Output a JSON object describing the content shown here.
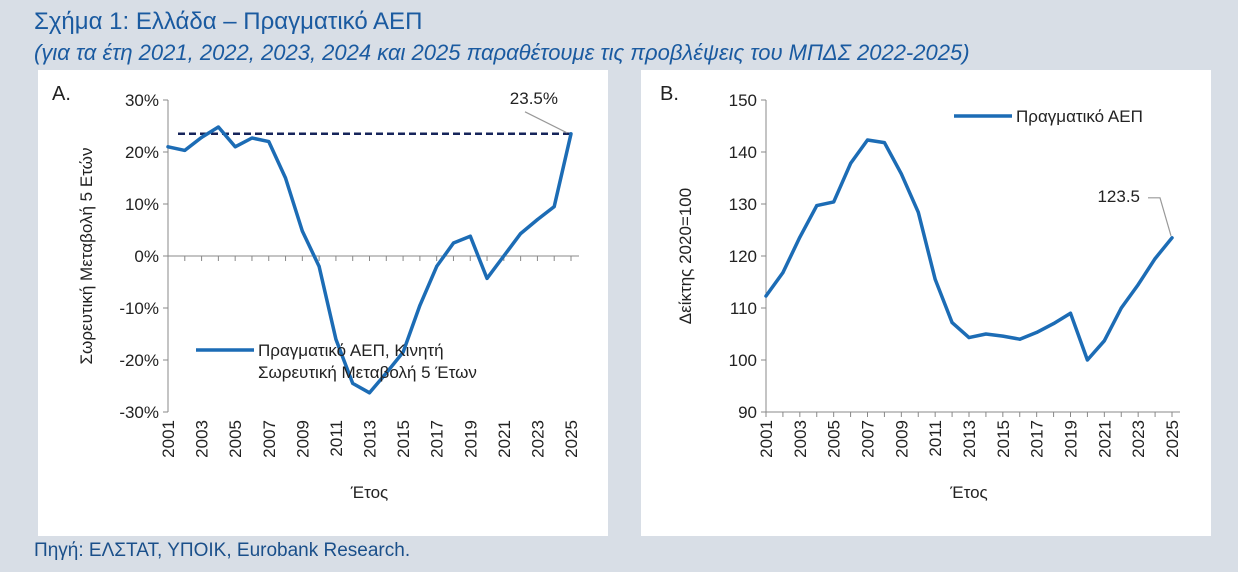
{
  "title": "Σχήμα 1: Ελλάδα – Πραγματικό ΑΕΠ",
  "subtitle": "(για τα έτη 2021, 2022, 2023, 2024 και 2025 παραθέτουμε τις προβλέψεις του ΜΠΔΣ 2022-2025)",
  "source": "Πηγή: ΕΛΣΤΑΤ, ΥΠΟΙΚ, Eurobank Research.",
  "colors": {
    "line": "#1c6cb5",
    "reference": "#16245a",
    "text": "#1a5aa0",
    "background": "#d8dee6"
  },
  "chart_data": [
    {
      "type": "line",
      "panel_label": "A.",
      "xlabel": "Έτος",
      "ylabel": "Σωρευτική Μεταβολή 5 Ετών",
      "ylim": [
        -30,
        30
      ],
      "ytick_labels": [
        "30%",
        "20%",
        "10%",
        "0%",
        "-10%",
        "-20%",
        "-30%"
      ],
      "yticks": [
        30,
        20,
        10,
        0,
        -10,
        -20,
        -30
      ],
      "xtick_labels": [
        "2001",
        "2003",
        "2005",
        "2007",
        "2009",
        "2011",
        "2013",
        "2015",
        "2017",
        "2019",
        "2021",
        "2023",
        "2025"
      ],
      "x": [
        2001,
        2002,
        2003,
        2004,
        2005,
        2006,
        2007,
        2008,
        2009,
        2010,
        2011,
        2012,
        2013,
        2014,
        2015,
        2016,
        2017,
        2018,
        2019,
        2020,
        2021,
        2022,
        2023,
        2024,
        2025
      ],
      "series": [
        {
          "name": "Πραγματικό ΑΕΠ, Κινητή Σωρευτική Μεταβολή 5 Ετών",
          "legend_lines": [
            "Πραγματικό ΑΕΠ, Κινητή",
            "Σωρευτική Μεταβολή 5 Έτων"
          ],
          "values": [
            21,
            20.3,
            22.8,
            24.8,
            21,
            22.7,
            22,
            15,
            4.8,
            -2,
            -16,
            -24.5,
            -26.3,
            -22.5,
            -18.5,
            -9.5,
            -2,
            2.5,
            3.8,
            -4.3,
            0,
            4.3,
            7,
            9.5,
            23.5
          ]
        }
      ],
      "reference_line": {
        "value": 23.5,
        "style": "dashed"
      },
      "annotation": {
        "text": "23.5%",
        "x": 2025,
        "y": 23.5
      }
    },
    {
      "type": "line",
      "panel_label": "B.",
      "xlabel": "Έτος",
      "ylabel": "Δείκτης 2020=100",
      "ylim": [
        90,
        150
      ],
      "ytick_labels": [
        "150",
        "140",
        "130",
        "120",
        "110",
        "100",
        "90"
      ],
      "yticks": [
        150,
        140,
        130,
        120,
        110,
        100,
        90
      ],
      "xtick_labels": [
        "2001",
        "2003",
        "2005",
        "2007",
        "2009",
        "2011",
        "2013",
        "2015",
        "2017",
        "2019",
        "2021",
        "2023",
        "2025"
      ],
      "x": [
        2001,
        2002,
        2003,
        2004,
        2005,
        2006,
        2007,
        2008,
        2009,
        2010,
        2011,
        2012,
        2013,
        2014,
        2015,
        2016,
        2017,
        2018,
        2019,
        2020,
        2021,
        2022,
        2023,
        2024,
        2025
      ],
      "series": [
        {
          "name": "Πραγματικό ΑΕΠ",
          "legend_lines": [
            "Πραγματικό ΑΕΠ"
          ],
          "values": [
            112.3,
            116.8,
            123.6,
            129.7,
            130.4,
            137.8,
            142.3,
            141.8,
            135.8,
            128.4,
            115.5,
            107.2,
            104.3,
            105,
            104.6,
            104,
            105.3,
            107,
            109,
            100,
            103.7,
            110,
            114.5,
            119.5,
            123.5
          ]
        }
      ],
      "annotation": {
        "text": "123.5",
        "x": 2025,
        "y": 123.5
      }
    }
  ]
}
